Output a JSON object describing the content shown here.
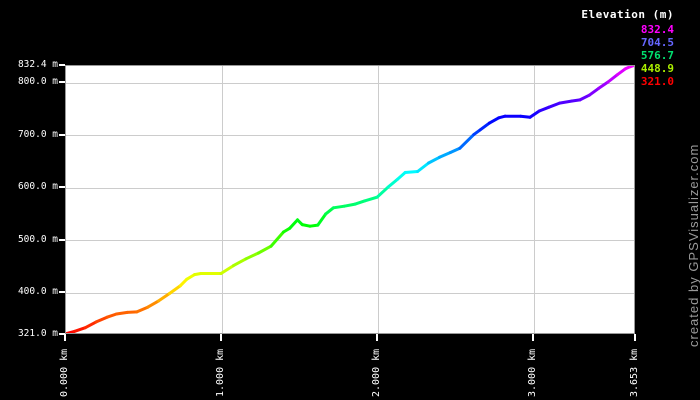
{
  "watermark": "created by GPSVisualizer.com",
  "colors": {
    "background": "#000000",
    "plot_background": "#ffffff",
    "gridline": "#cccccc",
    "plot_border": "#999999",
    "tick": "#ffffff",
    "axis_text": "#ffffff",
    "watermark_text": "#999999",
    "legend_title_text": "#ffffff"
  },
  "legend": {
    "title": "Elevation (m)",
    "entries": [
      {
        "label": "832.4",
        "color": "#ff00ff"
      },
      {
        "label": "704.5",
        "color": "#6666ff"
      },
      {
        "label": "576.7",
        "color": "#00e070"
      },
      {
        "label": "448.9",
        "color": "#aaee00"
      },
      {
        "label": "321.0",
        "color": "#ff0000"
      }
    ]
  },
  "chart_data": {
    "type": "line",
    "title": "",
    "x_unit": "km",
    "y_unit": "m",
    "xlim_km": [
      0,
      3.653
    ],
    "ylim_m": [
      321.0,
      832.4
    ],
    "grid": true,
    "x_gridlines_km": [
      1,
      2,
      3
    ],
    "y_gridlines_m": [
      800,
      700,
      600,
      500,
      400
    ],
    "x_ticks": [
      {
        "km": 0,
        "label": "0.000 km"
      },
      {
        "km": 1,
        "label": "1.000 km"
      },
      {
        "km": 2,
        "label": "2.000 km"
      },
      {
        "km": 3,
        "label": "3.000 km"
      },
      {
        "km": 3.653,
        "label": "3.653 km"
      }
    ],
    "y_ticks": [
      {
        "m": 832.4,
        "label": "832.4 m"
      },
      {
        "m": 800,
        "label": "800.0 m"
      },
      {
        "m": 700,
        "label": "700.0 m"
      },
      {
        "m": 600,
        "label": "600.0 m"
      },
      {
        "m": 500,
        "label": "500.0 m"
      },
      {
        "m": 400,
        "label": "400.0 m"
      },
      {
        "m": 321,
        "label": "321.0 m"
      }
    ],
    "color_scale": {
      "hue_start": 0,
      "hue_end": 300,
      "maps": "elevation"
    },
    "series": [
      {
        "name": "elevation_profile",
        "points_km_m": [
          [
            0.0,
            321
          ],
          [
            0.06,
            326
          ],
          [
            0.13,
            333
          ],
          [
            0.2,
            344
          ],
          [
            0.27,
            353
          ],
          [
            0.33,
            359
          ],
          [
            0.4,
            362
          ],
          [
            0.46,
            363
          ],
          [
            0.53,
            372
          ],
          [
            0.6,
            384
          ],
          [
            0.67,
            398
          ],
          [
            0.74,
            413
          ],
          [
            0.78,
            425
          ],
          [
            0.83,
            434
          ],
          [
            0.87,
            436
          ],
          [
            1.0,
            436
          ],
          [
            1.08,
            451
          ],
          [
            1.16,
            464
          ],
          [
            1.24,
            475
          ],
          [
            1.32,
            488
          ],
          [
            1.4,
            515
          ],
          [
            1.44,
            522
          ],
          [
            1.49,
            538
          ],
          [
            1.52,
            529
          ],
          [
            1.57,
            526
          ],
          [
            1.62,
            528
          ],
          [
            1.67,
            549
          ],
          [
            1.72,
            561
          ],
          [
            1.79,
            564
          ],
          [
            1.86,
            568
          ],
          [
            1.92,
            574
          ],
          [
            2.0,
            581
          ],
          [
            2.07,
            600
          ],
          [
            2.13,
            615
          ],
          [
            2.18,
            628
          ],
          [
            2.26,
            630
          ],
          [
            2.33,
            646
          ],
          [
            2.4,
            657
          ],
          [
            2.47,
            666
          ],
          [
            2.53,
            674
          ],
          [
            2.62,
            700
          ],
          [
            2.66,
            709
          ],
          [
            2.72,
            722
          ],
          [
            2.78,
            732
          ],
          [
            2.82,
            735
          ],
          [
            2.92,
            735
          ],
          [
            2.98,
            733
          ],
          [
            3.04,
            745
          ],
          [
            3.1,
            752
          ],
          [
            3.17,
            760
          ],
          [
            3.25,
            764
          ],
          [
            3.3,
            766
          ],
          [
            3.36,
            775
          ],
          [
            3.42,
            788
          ],
          [
            3.48,
            800
          ],
          [
            3.54,
            814
          ],
          [
            3.59,
            825
          ],
          [
            3.62,
            829
          ],
          [
            3.653,
            832.4
          ]
        ]
      }
    ]
  }
}
